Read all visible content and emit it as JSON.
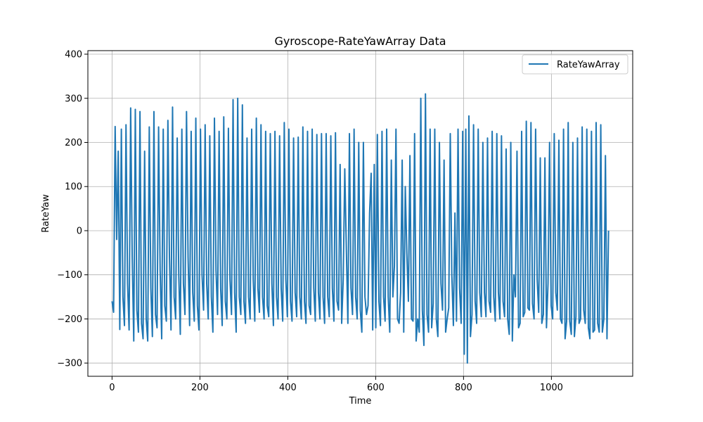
{
  "chart_data": {
    "type": "line",
    "title": "Gyroscope-RateYawArray Data",
    "xlabel": "Time",
    "ylabel": "RateYaw",
    "xlim": [
      -55,
      1185
    ],
    "ylim": [
      -330,
      408
    ],
    "xticks": [
      0,
      200,
      400,
      600,
      800,
      1000
    ],
    "yticks": [
      -300,
      -200,
      -100,
      0,
      100,
      200,
      300,
      400
    ],
    "grid": true,
    "legend": "top-right",
    "colors": {
      "series": "#1f77b4",
      "grid": "#b0b0b0",
      "axis": "#000000"
    },
    "series": [
      {
        "name": "RateYawArray",
        "x_start": 0,
        "x_step": 1,
        "values": [
          -160,
          -185,
          236,
          -20,
          180,
          -224,
          230,
          -150,
          -215,
          240,
          -120,
          -225,
          278,
          -60,
          -250,
          275,
          -180,
          -230,
          270,
          -210,
          -245,
          180,
          -200,
          -250,
          235,
          -130,
          -240,
          270,
          -190,
          -220,
          235,
          -90,
          -245,
          230,
          -170,
          -205,
          250,
          -60,
          -225,
          280,
          -150,
          -200,
          210,
          -100,
          -235,
          230,
          -120,
          -190,
          270,
          -60,
          -215,
          225,
          -140,
          -205,
          255,
          -170,
          -225,
          230,
          -100,
          -180,
          240,
          -120,
          -200,
          215,
          -150,
          -230,
          255,
          -90,
          -190,
          225,
          -130,
          -215,
          258,
          -160,
          -200,
          232,
          -110,
          -190,
          297,
          -140,
          -230,
          300,
          -150,
          -190,
          285,
          -160,
          -210,
          210,
          -150,
          -200,
          230,
          -110,
          -205,
          255,
          -130,
          -185,
          240,
          -150,
          -200,
          225,
          -170,
          -195,
          220,
          -120,
          -215,
          225,
          -150,
          -200,
          215,
          -130,
          -205,
          245,
          -110,
          -195,
          230,
          -160,
          -205,
          210,
          -140,
          -195,
          212,
          -150,
          -200,
          235,
          -160,
          -210,
          225,
          -170,
          -190,
          230,
          -130,
          -205,
          218,
          -140,
          -200,
          220,
          -150,
          -210,
          220,
          -150,
          -195,
          215,
          -130,
          -205,
          222,
          -160,
          -180,
          150,
          -210,
          -110,
          140,
          -40,
          -210,
          220,
          -130,
          -190,
          230,
          -150,
          -200,
          200,
          -180,
          -230,
          200,
          -150,
          -190,
          -170,
          40,
          130,
          -225,
          150,
          -220,
          218,
          -160,
          -215,
          225,
          -150,
          -205,
          230,
          -150,
          -230,
          160,
          -150,
          -80,
          230,
          -200,
          -210,
          -140,
          160,
          -230,
          100,
          -50,
          -160,
          170,
          -200,
          -205,
          220,
          -250,
          -200,
          -230,
          300,
          -180,
          -260,
          310,
          -190,
          -230,
          230,
          -220,
          -165,
          230,
          -200,
          -240,
          200,
          -120,
          -180,
          160,
          -230,
          -200,
          -175,
          220,
          -100,
          -215,
          40,
          -205,
          230,
          -130,
          -210,
          225,
          -280,
          230,
          -300,
          260,
          -240,
          -190,
          240,
          -160,
          -210,
          230,
          -140,
          -195,
          200,
          -140,
          -195,
          210,
          -160,
          -185,
          225,
          -150,
          -205,
          220,
          -140,
          -200,
          215,
          -160,
          -195,
          185,
          -200,
          -235,
          200,
          -250,
          -100,
          -150,
          180,
          -220,
          -210,
          225,
          -195,
          -185,
          248,
          -175,
          -180,
          245,
          -165,
          -200,
          230,
          -110,
          -185,
          165,
          -210,
          -190,
          165,
          -220,
          -120,
          200,
          -170,
          -200,
          220,
          -140,
          -180,
          205,
          -200,
          -210,
          230,
          -245,
          -205,
          245,
          -205,
          -235,
          200,
          -240,
          -195,
          210,
          -210,
          -200,
          235,
          -180,
          -210,
          230,
          -220,
          -245,
          225,
          -230,
          -225,
          245,
          -210,
          -230,
          240,
          -230,
          -200,
          170,
          -245,
          0
        ]
      }
    ]
  }
}
